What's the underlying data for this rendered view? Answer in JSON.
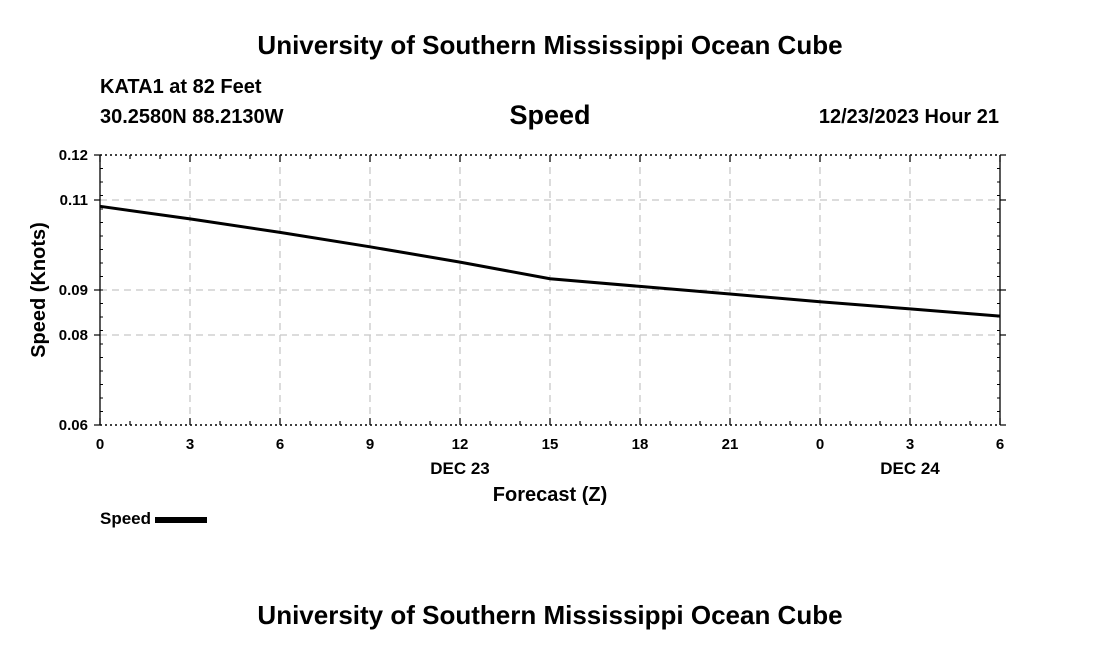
{
  "header": {
    "title_top": "University of Southern Mississippi Ocean Cube",
    "station": "KATA1 at 82 Feet",
    "coords": "30.2580N  88.2130W",
    "plot_title": "Speed",
    "datetime": "12/23/2023 Hour 21"
  },
  "footer": {
    "title_bottom": "University of Southern Mississippi Ocean Cube"
  },
  "legend": {
    "label": "Speed"
  },
  "chart_data": {
    "type": "line",
    "title": "Speed",
    "xlabel": "Forecast (Z)",
    "ylabel": "Speed (Knots)",
    "x": [
      0,
      3,
      6,
      9,
      12,
      15,
      18,
      21,
      24,
      27,
      30
    ],
    "x_tick_labels": [
      "0",
      "3",
      "6",
      "9",
      "12",
      "15",
      "18",
      "21",
      "0",
      "3",
      "6"
    ],
    "date_labels": [
      {
        "x": 12,
        "label": "DEC 23"
      },
      {
        "x": 27,
        "label": "DEC 24"
      }
    ],
    "xlim": [
      0,
      30
    ],
    "y_ticks": [
      0.06,
      0.08,
      0.09,
      0.11,
      0.12
    ],
    "y_tick_labels": [
      "0.06",
      "0.08",
      "0.09",
      "0.11",
      "0.12"
    ],
    "ylim": [
      0.06,
      0.12
    ],
    "grid": true,
    "series": [
      {
        "name": "Speed",
        "color": "#000000",
        "x": [
          0,
          3,
          6,
          9,
          12,
          15,
          18,
          21,
          24,
          27,
          30
        ],
        "values": [
          0.1086,
          0.1058,
          0.1028,
          0.0996,
          0.0962,
          0.0925,
          0.0908,
          0.0891,
          0.0874,
          0.0858,
          0.0842
        ]
      }
    ]
  }
}
